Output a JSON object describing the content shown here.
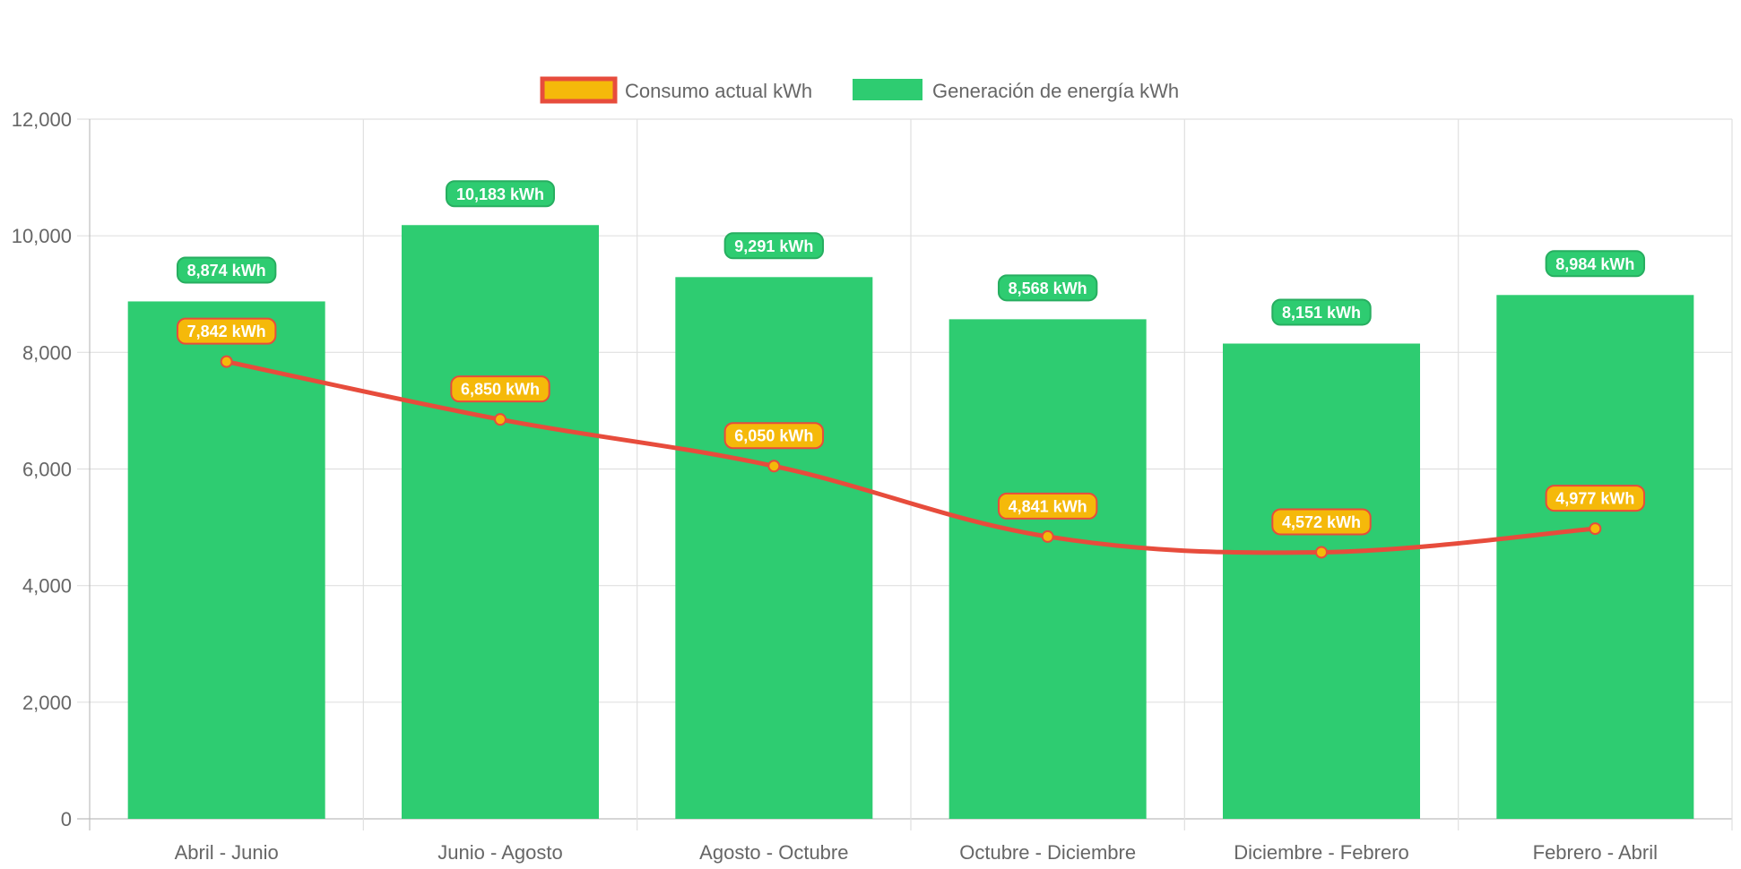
{
  "chart_data": {
    "type": "bar",
    "categories": [
      "Abril - Junio",
      "Junio - Agosto",
      "Agosto - Octubre",
      "Octubre - Diciembre",
      "Diciembre - Febrero",
      "Febrero - Abril"
    ],
    "series": [
      {
        "name": "Consumo actual kWh",
        "type": "line",
        "values": [
          7842,
          6850,
          6050,
          4841,
          4572,
          4977
        ],
        "labels": [
          "7,842 kWh",
          "6,850 kWh",
          "6,050 kWh",
          "4,841 kWh",
          "4,572 kWh",
          "4,977 kWh"
        ],
        "color": "#e74c3c",
        "fill": "#f5b90a"
      },
      {
        "name": "Generación de energía kWh",
        "type": "bar",
        "values": [
          8874,
          10183,
          9291,
          8568,
          8151,
          8984
        ],
        "labels": [
          "8,874 kWh",
          "10,183 kWh",
          "9,291 kWh",
          "8,568 kWh",
          "8,151 kWh",
          "8,984 kWh"
        ],
        "color": "#2ecc71",
        "border": "#27ae60"
      }
    ],
    "ylim": [
      0,
      12000
    ],
    "yticks": [
      0,
      2000,
      4000,
      6000,
      8000,
      10000,
      12000
    ],
    "ytick_labels": [
      "0",
      "2,000",
      "4,000",
      "6,000",
      "8,000",
      "10,000",
      "12,000"
    ],
    "grid": true,
    "legend_position": "top-center"
  }
}
